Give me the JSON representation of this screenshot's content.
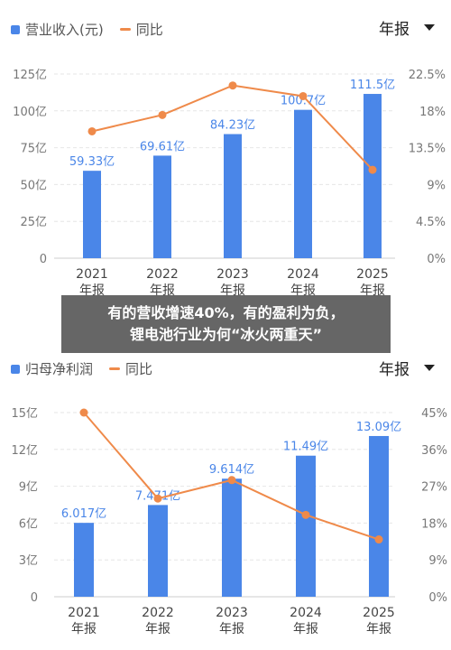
{
  "banner": {
    "line1": "有的营收增速40%，有的盈利为负，",
    "line2": "锂电池行业为何“冰火两重天”"
  },
  "colors": {
    "bar": "#4a86e8",
    "line": "#ef8a4a",
    "grid": "#e6e6e6",
    "axis": "#777777",
    "bar_label": "#4a86e8"
  },
  "chart_data": [
    {
      "type": "bar",
      "legend_bar": "营业收入(元)",
      "legend_line": "同比",
      "period_selector": "年报",
      "categories": [
        [
          "2021",
          "年报"
        ],
        [
          "2022",
          "年报"
        ],
        [
          "2023",
          "年报"
        ],
        [
          "2024",
          "年报"
        ],
        [
          "2025",
          "年报"
        ]
      ],
      "values": [
        59.33,
        69.61,
        84.23,
        100.7,
        111.5
      ],
      "value_labels": [
        "59.33亿",
        "69.61亿",
        "84.23亿",
        "100.7亿",
        "111.5亿"
      ],
      "line_values": [
        15.5,
        17.5,
        21.1,
        19.8,
        10.8
      ],
      "y_ticks": [
        "125亿",
        "100亿",
        "75亿",
        "50亿",
        "25亿",
        "0"
      ],
      "y2_ticks": [
        "22.5%",
        "18%",
        "13.5%",
        "9%",
        "4.5%",
        "0%"
      ],
      "ylim": [
        0,
        125
      ],
      "y2lim": [
        0,
        22.5
      ],
      "grid": true
    },
    {
      "type": "bar",
      "legend_bar": "归母净利润",
      "legend_line": "同比",
      "period_selector": "年报",
      "categories": [
        [
          "2021",
          "年报"
        ],
        [
          "2022",
          "年报"
        ],
        [
          "2023",
          "年报"
        ],
        [
          "2024",
          "年报"
        ],
        [
          "2025",
          "年报"
        ]
      ],
      "values": [
        6.017,
        7.471,
        9.614,
        11.49,
        13.09
      ],
      "value_labels": [
        "6.017亿",
        "7.471亿",
        "9.614亿",
        "11.49亿",
        "13.09亿"
      ],
      "line_values": [
        45,
        24,
        28.5,
        20,
        14
      ],
      "y_ticks": [
        "15亿",
        "12亿",
        "9亿",
        "6亿",
        "3亿",
        "0"
      ],
      "y2_ticks": [
        "45%",
        "36%",
        "27%",
        "18%",
        "9%",
        "0%"
      ],
      "ylim": [
        0,
        15
      ],
      "y2lim": [
        0,
        45
      ],
      "grid": true
    }
  ]
}
